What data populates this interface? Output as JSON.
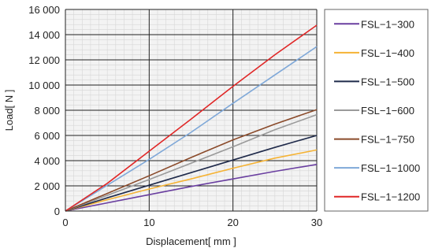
{
  "chart_data": {
    "type": "line",
    "title": "",
    "xlabel": "Displacement[ mm ]",
    "ylabel": "Load[ N ]",
    "xlim": [
      0,
      30
    ],
    "ylim": [
      0,
      16000
    ],
    "x_ticks": [
      0,
      10,
      20,
      30
    ],
    "x_tick_labels": [
      "0",
      "10",
      "20",
      "30"
    ],
    "y_ticks": [
      0,
      2000,
      4000,
      6000,
      8000,
      10000,
      12000,
      14000,
      16000
    ],
    "y_tick_labels": [
      "0",
      "2 000",
      "4 000",
      "6 000",
      "8 000",
      "10 000",
      "12 000",
      "14 000",
      "16 000"
    ],
    "grid": true,
    "legend_position": "right",
    "series": [
      {
        "name": "FSL−1−300",
        "color": "#6a3fa0",
        "points": [
          [
            0,
            0
          ],
          [
            5,
            650
          ],
          [
            10,
            1300
          ],
          [
            15,
            1950
          ],
          [
            20,
            2550
          ],
          [
            25,
            3150
          ],
          [
            30,
            3700
          ]
        ]
      },
      {
        "name": "FSL−1−400",
        "color": "#f5b335",
        "points": [
          [
            0,
            0
          ],
          [
            5,
            900
          ],
          [
            10,
            1750
          ],
          [
            15,
            2550
          ],
          [
            20,
            3400
          ],
          [
            25,
            4200
          ],
          [
            30,
            4850
          ]
        ]
      },
      {
        "name": "FSL−1−500",
        "color": "#1f2a4a",
        "points": [
          [
            0,
            0
          ],
          [
            5,
            1050
          ],
          [
            10,
            2050
          ],
          [
            15,
            3050
          ],
          [
            20,
            4050
          ],
          [
            25,
            5050
          ],
          [
            30,
            6000
          ]
        ]
      },
      {
        "name": "FSL−1−600",
        "color": "#9a9a9a",
        "points": [
          [
            0,
            0
          ],
          [
            5,
            1250
          ],
          [
            10,
            2500
          ],
          [
            15,
            3800
          ],
          [
            20,
            5100
          ],
          [
            25,
            6450
          ],
          [
            30,
            7650
          ]
        ]
      },
      {
        "name": "FSL−1−750",
        "color": "#8a4a2a",
        "points": [
          [
            0,
            0
          ],
          [
            5,
            1400
          ],
          [
            10,
            2800
          ],
          [
            15,
            4250
          ],
          [
            20,
            5650
          ],
          [
            25,
            6900
          ],
          [
            30,
            8050
          ]
        ]
      },
      {
        "name": "FSL−1−1000",
        "color": "#7fa8d8",
        "points": [
          [
            0,
            0
          ],
          [
            5,
            2050
          ],
          [
            10,
            4100
          ],
          [
            15,
            6250
          ],
          [
            20,
            8550
          ],
          [
            25,
            10800
          ],
          [
            30,
            13050
          ]
        ]
      },
      {
        "name": "FSL−1−1200",
        "color": "#e02727",
        "points": [
          [
            0,
            0
          ],
          [
            5,
            2200
          ],
          [
            10,
            4750
          ],
          [
            15,
            7300
          ],
          [
            20,
            9900
          ],
          [
            25,
            12400
          ],
          [
            30,
            14750
          ]
        ]
      }
    ]
  }
}
